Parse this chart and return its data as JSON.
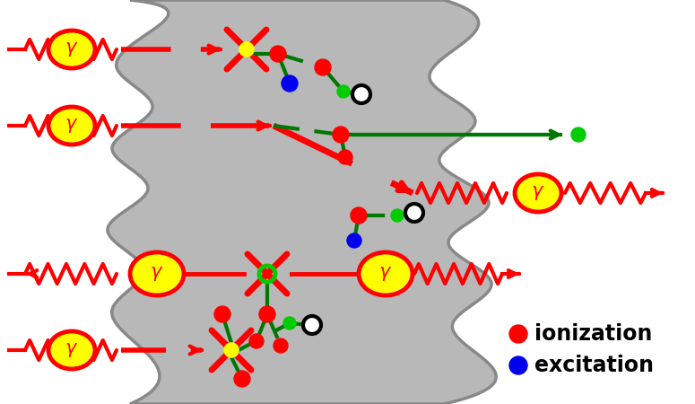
{
  "fig_width": 7.75,
  "fig_height": 4.5,
  "dpi": 100,
  "bg_color": "#ffffff",
  "gray_color": "#b8b8b8",
  "gray_edge": "#888888",
  "red": "#ff0000",
  "yellow": "#ffff00",
  "green": "#00cc00",
  "blue": "#0000ee",
  "dark_green": "#007700",
  "black": "#000000",
  "legend_ionization": "ionization",
  "legend_excitation": "excitation"
}
